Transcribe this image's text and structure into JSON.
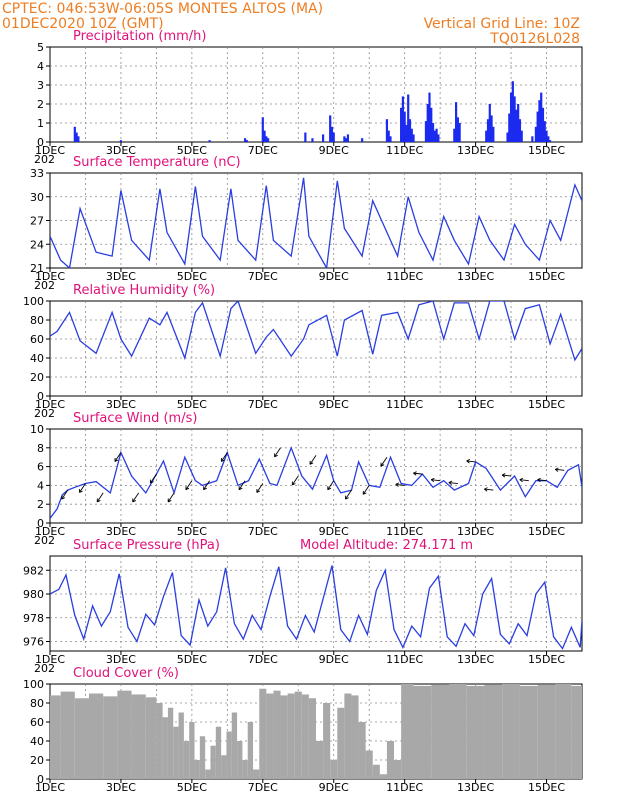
{
  "header": {
    "station": "CPTEC:   046:53W-06:05S   MONTES ALTOS (MA)",
    "datetime": "01DEC2020 10Z (GMT)",
    "grid_note": "Vertical Grid Line: 10Z",
    "run_code": "TQ0126L028"
  },
  "colors": {
    "header": "#ee7d22",
    "title": "#e0127a",
    "line": "#2a3ee0",
    "bar": "#1c2bf0",
    "cloud": "#a8a8a8",
    "grid": "#8c8c8c"
  },
  "x_axis": {
    "start_day": 1,
    "end_day": 16,
    "tick_labels": [
      "1DEC",
      "3DEC",
      "5DEC",
      "7DEC",
      "9DEC",
      "11DEC",
      "13DEC",
      "15DEC"
    ],
    "stub_label": "202"
  },
  "chart_data": [
    {
      "type": "bar",
      "title": "Precipitation (mm/h)",
      "ylim": [
        0,
        5
      ],
      "yticks": [
        "0",
        "1",
        "2",
        "3",
        "4",
        "5"
      ],
      "grid": true,
      "x": [
        1.7,
        1.75,
        1.8,
        3.0,
        5.5,
        6.5,
        6.55,
        7.0,
        7.05,
        7.1,
        7.15,
        8.2,
        8.4,
        8.7,
        8.9,
        8.95,
        9.0,
        9.3,
        9.35,
        9.4,
        9.8,
        10.5,
        10.55,
        10.6,
        10.9,
        10.95,
        11.0,
        11.05,
        11.1,
        11.15,
        11.2,
        11.25,
        11.6,
        11.65,
        11.7,
        11.75,
        11.8,
        11.85,
        11.9,
        11.95,
        12.4,
        12.45,
        12.5,
        12.55,
        13.3,
        13.35,
        13.4,
        13.45,
        13.5,
        13.9,
        13.95,
        14.0,
        14.05,
        14.1,
        14.15,
        14.2,
        14.25,
        14.3,
        14.6,
        14.7,
        14.75,
        14.8,
        14.85,
        14.9,
        14.95,
        15.0,
        15.05,
        15.1
      ],
      "y": [
        0.8,
        0.5,
        0.3,
        0.1,
        0.1,
        0.2,
        0.1,
        1.3,
        0.6,
        0.3,
        0.2,
        0.5,
        0.2,
        0.4,
        1.4,
        0.8,
        0.5,
        0.3,
        0.2,
        0.4,
        0.2,
        1.2,
        0.6,
        0.3,
        1.8,
        2.4,
        1.6,
        0.9,
        2.5,
        1.2,
        0.7,
        0.4,
        1.1,
        2.0,
        2.6,
        1.8,
        1.0,
        0.6,
        0.7,
        0.4,
        0.7,
        2.1,
        1.3,
        1.0,
        0.6,
        1.2,
        2.0,
        1.4,
        0.8,
        0.5,
        1.5,
        2.6,
        3.2,
        2.4,
        1.7,
        2.0,
        1.2,
        0.6,
        0.3,
        0.8,
        1.6,
        2.2,
        2.6,
        1.8,
        1.1,
        0.6,
        0.3,
        0.1
      ]
    },
    {
      "type": "line",
      "title": "Surface Temperature (nC)",
      "ylim": [
        21,
        33
      ],
      "yticks": [
        "21",
        "24",
        "27",
        "30",
        "33"
      ],
      "grid": true,
      "x": [
        1.0,
        1.3,
        1.55,
        1.85,
        2.3,
        2.75,
        3.0,
        3.3,
        3.8,
        4.1,
        4.3,
        4.8,
        5.1,
        5.3,
        5.8,
        6.1,
        6.3,
        6.8,
        7.1,
        7.3,
        7.8,
        8.15,
        8.3,
        8.8,
        9.1,
        9.3,
        9.8,
        10.1,
        10.35,
        10.8,
        11.1,
        11.4,
        11.8,
        12.1,
        12.4,
        12.8,
        13.1,
        13.4,
        13.8,
        14.1,
        14.4,
        14.8,
        15.1,
        15.4,
        15.8,
        16.0
      ],
      "y": [
        25.0,
        22.0,
        21.0,
        28.5,
        23.0,
        22.5,
        30.8,
        24.5,
        22.0,
        31.0,
        25.5,
        21.5,
        31.3,
        25.0,
        22.0,
        31.0,
        24.5,
        22.0,
        31.4,
        24.5,
        22.5,
        32.4,
        25.0,
        21.0,
        32.0,
        26.0,
        22.5,
        29.5,
        27.0,
        22.5,
        30.0,
        25.5,
        22.0,
        27.5,
        24.5,
        21.5,
        27.5,
        24.5,
        22.0,
        26.5,
        24.0,
        22.0,
        27.0,
        24.5,
        31.5,
        29.5
      ]
    },
    {
      "type": "line",
      "title": "Relative Humidity (%)",
      "ylim": [
        0,
        100
      ],
      "yticks": [
        "0",
        "20",
        "40",
        "60",
        "80",
        "100"
      ],
      "grid": true,
      "x": [
        1.0,
        1.2,
        1.55,
        1.85,
        2.3,
        2.75,
        3.0,
        3.3,
        3.8,
        4.1,
        4.3,
        4.8,
        5.1,
        5.3,
        5.8,
        6.1,
        6.3,
        6.8,
        7.1,
        7.3,
        7.8,
        8.15,
        8.3,
        8.8,
        9.1,
        9.3,
        9.8,
        10.1,
        10.35,
        10.8,
        11.1,
        11.4,
        11.8,
        12.1,
        12.4,
        12.8,
        13.1,
        13.4,
        13.8,
        14.1,
        14.4,
        14.8,
        15.1,
        15.4,
        15.8,
        16.0
      ],
      "y": [
        63,
        68,
        88,
        58,
        45,
        88,
        60,
        42,
        82,
        75,
        88,
        40,
        88,
        98,
        42,
        92,
        100,
        45,
        62,
        70,
        42,
        60,
        75,
        85,
        42,
        80,
        90,
        44,
        85,
        88,
        60,
        96,
        100,
        60,
        98,
        98,
        60,
        100,
        100,
        60,
        92,
        96,
        55,
        86,
        38,
        50
      ]
    },
    {
      "type": "line",
      "title": "Surface Wind (m/s)",
      "ylim": [
        0,
        10
      ],
      "yticks": [
        "0",
        "2",
        "4",
        "6",
        "8",
        "10"
      ],
      "grid": true,
      "x": [
        1.0,
        1.2,
        1.35,
        1.5,
        1.7,
        2.0,
        2.3,
        2.7,
        3.0,
        3.3,
        3.7,
        4.0,
        4.2,
        4.5,
        4.8,
        5.1,
        5.3,
        5.7,
        6.0,
        6.3,
        6.6,
        6.9,
        7.2,
        7.4,
        7.8,
        8.1,
        8.4,
        8.8,
        9.0,
        9.2,
        9.5,
        9.7,
        10.0,
        10.3,
        10.6,
        10.9,
        11.2,
        11.5,
        11.8,
        12.1,
        12.4,
        12.8,
        13.0,
        13.3,
        13.7,
        14.1,
        14.4,
        14.7,
        15.0,
        15.3,
        15.6,
        15.9,
        16.0
      ],
      "y": [
        0.5,
        1.5,
        3.0,
        3.5,
        3.8,
        4.2,
        4.4,
        3.2,
        7.5,
        5.0,
        3.2,
        5.2,
        6.6,
        3.2,
        7.0,
        4.5,
        4.0,
        4.5,
        7.5,
        4.0,
        4.5,
        6.8,
        4.2,
        4.0,
        8.0,
        5.0,
        3.6,
        7.2,
        4.5,
        3.2,
        3.5,
        6.5,
        4.0,
        3.8,
        7.0,
        4.2,
        4.0,
        5.2,
        3.8,
        4.5,
        3.5,
        4.2,
        6.5,
        5.8,
        3.5,
        5.0,
        2.8,
        4.5,
        4.5,
        3.8,
        5.6,
        6.2,
        3.8
      ]
    },
    {
      "type": "line",
      "title": "Surface Pressure (hPa)",
      "note": "Model Altitude: 274.171  m",
      "ylim": [
        975.2,
        983.2
      ],
      "yticks": [
        "976",
        "978",
        "980",
        "982"
      ],
      "grid": true,
      "x": [
        1.0,
        1.25,
        1.45,
        1.7,
        1.95,
        2.2,
        2.45,
        2.7,
        2.95,
        3.2,
        3.45,
        3.7,
        3.95,
        4.2,
        4.45,
        4.7,
        4.95,
        5.2,
        5.45,
        5.7,
        5.95,
        6.2,
        6.45,
        6.7,
        6.95,
        7.2,
        7.45,
        7.7,
        7.95,
        8.2,
        8.45,
        8.7,
        8.95,
        9.2,
        9.45,
        9.7,
        9.95,
        10.2,
        10.45,
        10.7,
        10.95,
        11.2,
        11.45,
        11.7,
        11.95,
        12.2,
        12.45,
        12.7,
        12.95,
        13.2,
        13.45,
        13.7,
        13.95,
        14.2,
        14.45,
        14.7,
        14.95,
        15.2,
        15.45,
        15.7,
        15.95,
        16.0
      ],
      "y": [
        980.0,
        980.4,
        981.6,
        978.2,
        976.2,
        979.0,
        977.3,
        978.5,
        981.7,
        977.2,
        976.0,
        978.3,
        977.4,
        979.8,
        981.8,
        976.5,
        975.7,
        979.5,
        977.3,
        978.5,
        982.2,
        977.5,
        976.2,
        978.2,
        977.0,
        979.8,
        982.3,
        977.3,
        976.2,
        978.2,
        976.8,
        979.6,
        982.4,
        977.0,
        976.0,
        978.2,
        976.6,
        980.3,
        982.0,
        977.0,
        975.5,
        977.3,
        976.4,
        980.5,
        981.5,
        976.4,
        975.6,
        977.5,
        976.5,
        980.0,
        981.3,
        976.6,
        975.8,
        977.5,
        976.5,
        980.0,
        981.0,
        976.4,
        975.4,
        977.2,
        975.5,
        977.8
      ]
    },
    {
      "type": "bar",
      "title": "Cloud Cover (%)",
      "ylim": [
        0,
        100
      ],
      "yticks": [
        "0",
        "20",
        "40",
        "60",
        "80",
        "100"
      ],
      "grid": true,
      "x": [
        1.1,
        1.5,
        1.9,
        2.3,
        2.7,
        3.1,
        3.5,
        3.9,
        4.1,
        4.25,
        4.4,
        4.55,
        4.7,
        4.85,
        5.0,
        5.15,
        5.3,
        5.45,
        5.6,
        5.75,
        5.9,
        6.05,
        6.2,
        6.35,
        6.5,
        6.65,
        6.8,
        7.0,
        7.2,
        7.4,
        7.6,
        7.8,
        8.0,
        8.2,
        8.4,
        8.6,
        8.8,
        9.0,
        9.2,
        9.4,
        9.6,
        9.8,
        10.0,
        10.2,
        10.4,
        10.6,
        10.8,
        11.0,
        11.5,
        12.0,
        12.5,
        13.0,
        13.5,
        14.0,
        14.5,
        15.0,
        15.5,
        15.9
      ],
      "y": [
        88,
        92,
        85,
        90,
        87,
        93,
        89,
        86,
        80,
        65,
        75,
        55,
        70,
        40,
        60,
        20,
        45,
        10,
        35,
        55,
        25,
        50,
        70,
        40,
        20,
        60,
        10,
        95,
        90,
        93,
        88,
        90,
        92,
        89,
        85,
        40,
        80,
        20,
        75,
        90,
        88,
        60,
        30,
        15,
        5,
        40,
        20,
        100,
        98,
        99,
        100,
        98,
        99,
        100,
        98,
        99,
        100,
        98
      ]
    }
  ]
}
